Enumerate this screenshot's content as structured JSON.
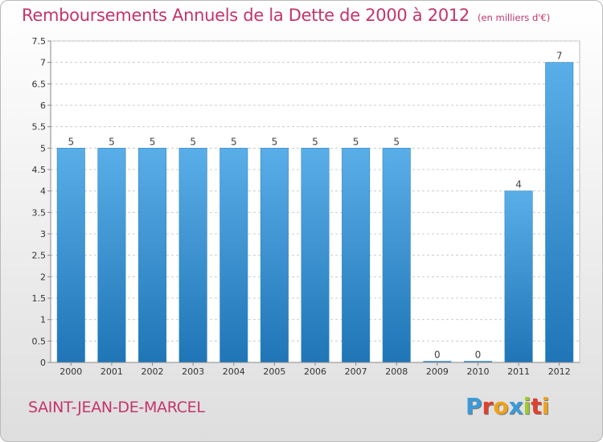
{
  "title": "Remboursements Annuels de la Dette de 2000 à 2012",
  "subtitle": "(en milliers d'€)",
  "commune": "SAINT-JEAN-DE-MARCEL",
  "brand": {
    "letters": [
      "P",
      "r",
      "o",
      "x",
      "i",
      "t",
      "i"
    ],
    "colors": [
      "#3a9ad9",
      "#e0402c",
      "#f0a21c",
      "#3a9ad9",
      "#9fca2c",
      "#e0402c",
      "#f0a21c"
    ]
  },
  "colors": {
    "bar_top": "#5aaee8",
    "bar_bottom": "#1f75b6",
    "accent": "#c4346c",
    "grid": "#cccccc"
  },
  "chart_data": {
    "type": "bar",
    "categories": [
      "2000",
      "2001",
      "2002",
      "2003",
      "2004",
      "2005",
      "2006",
      "2007",
      "2008",
      "2009",
      "2010",
      "2011",
      "2012"
    ],
    "values": [
      5,
      5,
      5,
      5,
      5,
      5,
      5,
      5,
      5,
      0,
      0,
      4,
      7
    ],
    "data_labels": [
      "5",
      "5",
      "5",
      "5",
      "5",
      "5",
      "5",
      "5",
      "5",
      "0",
      "0",
      "4",
      "7"
    ],
    "y_ticks": [
      "0",
      "0.5",
      "1",
      "1.5",
      "2",
      "2.5",
      "3",
      "3.5",
      "4",
      "4.5",
      "5",
      "5.5",
      "6",
      "6.5",
      "7",
      "7.5"
    ],
    "ylim": [
      0,
      7.5
    ],
    "grid": "horizontal dashed",
    "legend": "none"
  }
}
